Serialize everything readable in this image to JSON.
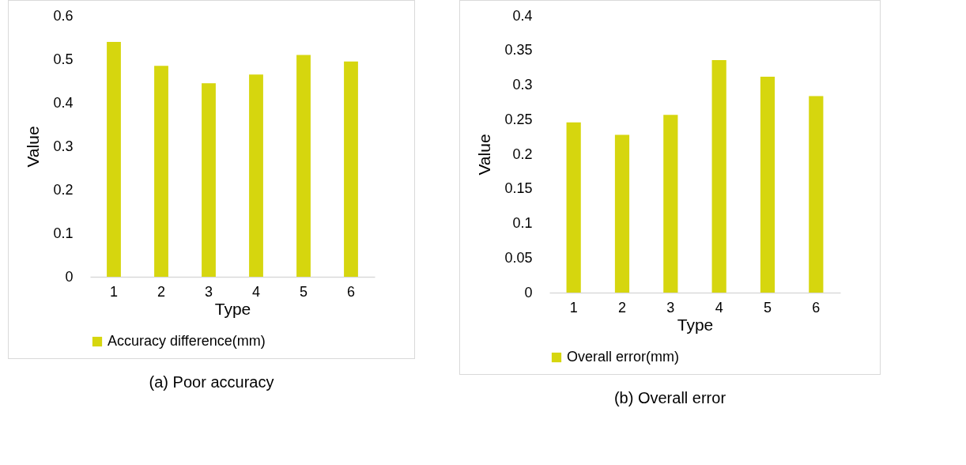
{
  "chart_data": [
    {
      "type": "bar",
      "xlabel": "Type",
      "ylabel": "Value",
      "categories": [
        "1",
        "2",
        "3",
        "4",
        "5",
        "6"
      ],
      "series": [
        {
          "name": "Accuracy difference(mm)",
          "color": "#d6d60e",
          "values": [
            0.54,
            0.485,
            0.445,
            0.465,
            0.51,
            0.495
          ]
        }
      ],
      "ylim": [
        0,
        0.6
      ],
      "yticks": [
        0,
        0.1,
        0.2,
        0.3,
        0.4,
        0.5,
        0.6
      ],
      "grid": false,
      "legend": "bottom",
      "annotations": [
        "(a) Poor accuracy"
      ]
    },
    {
      "type": "bar",
      "xlabel": "Type",
      "ylabel": "Value",
      "categories": [
        "1",
        "2",
        "3",
        "4",
        "5",
        "6"
      ],
      "series": [
        {
          "name": "Overall error(mm)",
          "color": "#d6d60e",
          "values": [
            0.246,
            0.228,
            0.257,
            0.336,
            0.312,
            0.284
          ]
        }
      ],
      "ylim": [
        0,
        0.4
      ],
      "yticks": [
        0,
        0.05,
        0.1,
        0.15,
        0.2,
        0.25,
        0.3,
        0.35,
        0.4
      ],
      "grid": false,
      "legend": "bottom",
      "annotations": [
        "(b) Overall error"
      ]
    }
  ]
}
